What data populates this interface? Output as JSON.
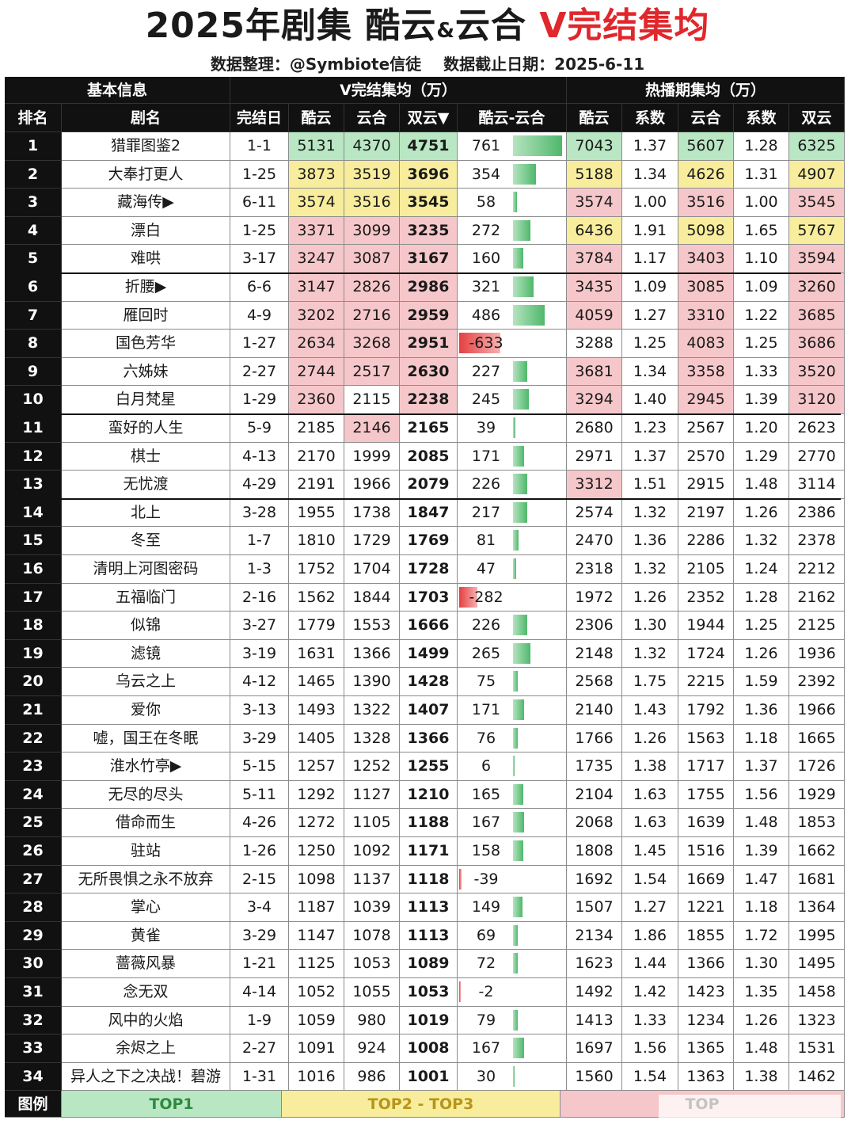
{
  "title": {
    "year": "2025年剧集 ",
    "p1": "酷云",
    "amp": "&",
    "p2": "云合 ",
    "hl": "V完结集均"
  },
  "subtitle": {
    "credit": "数据整理：@Symbiote信徒",
    "date": "数据截止日期：2025-6-11"
  },
  "group_headers": {
    "basic": "基本信息",
    "vfinal": "V完结集均（万）",
    "hot": "热播期集均（万）"
  },
  "columns": [
    "排名",
    "剧名",
    "完结日",
    "酷云",
    "云合",
    "双云▼",
    "酷云-云合",
    "酷云",
    "系数",
    "云合",
    "系数",
    "双云"
  ],
  "rows": [
    {
      "rank": "1",
      "name": "猎罪图鉴2",
      "date": "1-1",
      "ku": "5131",
      "yun": "4370",
      "dual": "4751",
      "diff": 761,
      "hku": "7043",
      "hk1": "1.37",
      "hyun": "5607",
      "hk2": "1.28",
      "hdual": "6325",
      "hl": [
        "g1",
        "g1",
        "g1",
        "",
        "g1",
        "",
        "g1",
        "",
        "g1"
      ]
    },
    {
      "rank": "2",
      "name": "大奉打更人",
      "date": "1-25",
      "ku": "3873",
      "yun": "3519",
      "dual": "3696",
      "diff": 354,
      "hku": "5188",
      "hk1": "1.34",
      "hyun": "4626",
      "hk2": "1.31",
      "hdual": "4907",
      "hl": [
        "g2",
        "g2",
        "g2",
        "",
        "g2",
        "",
        "g2",
        "",
        "g2"
      ]
    },
    {
      "rank": "3",
      "name": "藏海传▶",
      "date": "6-11",
      "ku": "3574",
      "yun": "3516",
      "dual": "3545",
      "diff": 58,
      "hku": "3574",
      "hk1": "1.00",
      "hyun": "3516",
      "hk2": "1.00",
      "hdual": "3545",
      "hl": [
        "g2",
        "g2",
        "g2",
        "",
        "g3",
        "",
        "g3",
        "",
        "g3"
      ]
    },
    {
      "rank": "4",
      "name": "漂白",
      "date": "1-25",
      "ku": "3371",
      "yun": "3099",
      "dual": "3235",
      "diff": 272,
      "hku": "6436",
      "hk1": "1.91",
      "hyun": "5098",
      "hk2": "1.65",
      "hdual": "5767",
      "hl": [
        "g3",
        "g3",
        "g3",
        "",
        "g2",
        "",
        "g2",
        "",
        "g2"
      ]
    },
    {
      "rank": "5",
      "name": "难哄",
      "date": "3-17",
      "ku": "3247",
      "yun": "3087",
      "dual": "3167",
      "diff": 160,
      "hku": "3784",
      "hk1": "1.17",
      "hyun": "3403",
      "hk2": "1.10",
      "hdual": "3594",
      "hl": [
        "g3",
        "g3",
        "g3",
        "",
        "g3",
        "",
        "g3",
        "",
        "g3"
      ]
    },
    {
      "rank": "6",
      "name": "折腰▶",
      "date": "6-6",
      "ku": "3147",
      "yun": "2826",
      "dual": "2986",
      "diff": 321,
      "hku": "3435",
      "hk1": "1.09",
      "hyun": "3085",
      "hk2": "1.09",
      "hdual": "3260",
      "hl": [
        "g3",
        "g3",
        "g3",
        "",
        "g3",
        "",
        "g3",
        "",
        "g3"
      ]
    },
    {
      "rank": "7",
      "name": "雁回时",
      "date": "4-9",
      "ku": "3202",
      "yun": "2716",
      "dual": "2959",
      "diff": 486,
      "hku": "4059",
      "hk1": "1.27",
      "hyun": "3310",
      "hk2": "1.22",
      "hdual": "3685",
      "hl": [
        "g3",
        "g3",
        "g3",
        "",
        "g3",
        "",
        "g3",
        "",
        "g3"
      ]
    },
    {
      "rank": "8",
      "name": "国色芳华",
      "date": "1-27",
      "ku": "2634",
      "yun": "3268",
      "dual": "2951",
      "diff": -633,
      "hku": "3288",
      "hk1": "1.25",
      "hyun": "4083",
      "hk2": "1.25",
      "hdual": "3686",
      "hl": [
        "g3",
        "g3",
        "g3",
        "",
        "",
        "",
        "g3",
        "",
        "g3"
      ]
    },
    {
      "rank": "9",
      "name": "六姊妹",
      "date": "2-27",
      "ku": "2744",
      "yun": "2517",
      "dual": "2630",
      "diff": 227,
      "hku": "3681",
      "hk1": "1.34",
      "hyun": "3358",
      "hk2": "1.33",
      "hdual": "3520",
      "hl": [
        "g3",
        "g3",
        "g3",
        "",
        "g3",
        "",
        "g3",
        "",
        "g3"
      ]
    },
    {
      "rank": "10",
      "name": "白月梵星",
      "date": "1-29",
      "ku": "2360",
      "yun": "2115",
      "dual": "2238",
      "diff": 245,
      "hku": "3294",
      "hk1": "1.40",
      "hyun": "2945",
      "hk2": "1.39",
      "hdual": "3120",
      "hl": [
        "g3",
        "",
        "g3",
        "",
        "g3",
        "",
        "g3",
        "",
        "g3"
      ]
    },
    {
      "rank": "11",
      "name": "蛮好的人生",
      "date": "5-9",
      "ku": "2185",
      "yun": "2146",
      "dual": "2165",
      "diff": 39,
      "hku": "2680",
      "hk1": "1.23",
      "hyun": "2567",
      "hk2": "1.20",
      "hdual": "2623",
      "hl": [
        "",
        "g3",
        "",
        "",
        "",
        "",
        "",
        "",
        ""
      ]
    },
    {
      "rank": "12",
      "name": "棋士",
      "date": "4-13",
      "ku": "2170",
      "yun": "1999",
      "dual": "2085",
      "diff": 171,
      "hku": "2971",
      "hk1": "1.37",
      "hyun": "2570",
      "hk2": "1.29",
      "hdual": "2770",
      "hl": [
        "",
        "",
        "",
        "",
        "",
        "",
        "",
        "",
        ""
      ]
    },
    {
      "rank": "13",
      "name": "无忧渡",
      "date": "4-29",
      "ku": "2191",
      "yun": "1966",
      "dual": "2079",
      "diff": 226,
      "hku": "3312",
      "hk1": "1.51",
      "hyun": "2915",
      "hk2": "1.48",
      "hdual": "3114",
      "hl": [
        "",
        "",
        "",
        "",
        "g3",
        "",
        "",
        "",
        ""
      ]
    },
    {
      "rank": "14",
      "name": "北上",
      "date": "3-28",
      "ku": "1955",
      "yun": "1738",
      "dual": "1847",
      "diff": 217,
      "hku": "2574",
      "hk1": "1.32",
      "hyun": "2197",
      "hk2": "1.26",
      "hdual": "2386",
      "hl": [
        "",
        "",
        "",
        "",
        "",
        "",
        "",
        "",
        ""
      ]
    },
    {
      "rank": "15",
      "name": "冬至",
      "date": "1-7",
      "ku": "1810",
      "yun": "1729",
      "dual": "1769",
      "diff": 81,
      "hku": "2470",
      "hk1": "1.36",
      "hyun": "2286",
      "hk2": "1.32",
      "hdual": "2378",
      "hl": [
        "",
        "",
        "",
        "",
        "",
        "",
        "",
        "",
        ""
      ]
    },
    {
      "rank": "16",
      "name": "清明上河图密码",
      "date": "1-3",
      "ku": "1752",
      "yun": "1704",
      "dual": "1728",
      "diff": 47,
      "hku": "2318",
      "hk1": "1.32",
      "hyun": "2105",
      "hk2": "1.24",
      "hdual": "2212",
      "hl": [
        "",
        "",
        "",
        "",
        "",
        "",
        "",
        "",
        ""
      ]
    },
    {
      "rank": "17",
      "name": "五福临门",
      "date": "2-16",
      "ku": "1562",
      "yun": "1844",
      "dual": "1703",
      "diff": -282,
      "hku": "1972",
      "hk1": "1.26",
      "hyun": "2352",
      "hk2": "1.28",
      "hdual": "2162",
      "hl": [
        "",
        "",
        "",
        "",
        "",
        "",
        "",
        "",
        ""
      ]
    },
    {
      "rank": "18",
      "name": "似锦",
      "date": "3-27",
      "ku": "1779",
      "yun": "1553",
      "dual": "1666",
      "diff": 226,
      "hku": "2306",
      "hk1": "1.30",
      "hyun": "1944",
      "hk2": "1.25",
      "hdual": "2125",
      "hl": [
        "",
        "",
        "",
        "",
        "",
        "",
        "",
        "",
        ""
      ]
    },
    {
      "rank": "19",
      "name": "滤镜",
      "date": "3-19",
      "ku": "1631",
      "yun": "1366",
      "dual": "1499",
      "diff": 265,
      "hku": "2148",
      "hk1": "1.32",
      "hyun": "1724",
      "hk2": "1.26",
      "hdual": "1936",
      "hl": [
        "",
        "",
        "",
        "",
        "",
        "",
        "",
        "",
        ""
      ]
    },
    {
      "rank": "20",
      "name": "乌云之上",
      "date": "4-12",
      "ku": "1465",
      "yun": "1390",
      "dual": "1428",
      "diff": 75,
      "hku": "2568",
      "hk1": "1.75",
      "hyun": "2215",
      "hk2": "1.59",
      "hdual": "2392",
      "hl": [
        "",
        "",
        "",
        "",
        "",
        "",
        "",
        "",
        ""
      ]
    },
    {
      "rank": "21",
      "name": "爱你",
      "date": "3-13",
      "ku": "1493",
      "yun": "1322",
      "dual": "1407",
      "diff": 171,
      "hku": "2140",
      "hk1": "1.43",
      "hyun": "1792",
      "hk2": "1.36",
      "hdual": "1966",
      "hl": [
        "",
        "",
        "",
        "",
        "",
        "",
        "",
        "",
        ""
      ]
    },
    {
      "rank": "22",
      "name": "嘘，国王在冬眠",
      "date": "3-29",
      "ku": "1405",
      "yun": "1328",
      "dual": "1366",
      "diff": 76,
      "hku": "1766",
      "hk1": "1.26",
      "hyun": "1563",
      "hk2": "1.18",
      "hdual": "1665",
      "hl": [
        "",
        "",
        "",
        "",
        "",
        "",
        "",
        "",
        ""
      ]
    },
    {
      "rank": "23",
      "name": "淮水竹亭▶",
      "date": "5-15",
      "ku": "1257",
      "yun": "1252",
      "dual": "1255",
      "diff": 6,
      "hku": "1735",
      "hk1": "1.38",
      "hyun": "1717",
      "hk2": "1.37",
      "hdual": "1726",
      "hl": [
        "",
        "",
        "",
        "",
        "",
        "",
        "",
        "",
        ""
      ]
    },
    {
      "rank": "24",
      "name": "无尽的尽头",
      "date": "5-11",
      "ku": "1292",
      "yun": "1127",
      "dual": "1210",
      "diff": 165,
      "hku": "2104",
      "hk1": "1.63",
      "hyun": "1755",
      "hk2": "1.56",
      "hdual": "1929",
      "hl": [
        "",
        "",
        "",
        "",
        "",
        "",
        "",
        "",
        ""
      ]
    },
    {
      "rank": "25",
      "name": "借命而生",
      "date": "4-26",
      "ku": "1272",
      "yun": "1105",
      "dual": "1188",
      "diff": 167,
      "hku": "2068",
      "hk1": "1.63",
      "hyun": "1639",
      "hk2": "1.48",
      "hdual": "1853",
      "hl": [
        "",
        "",
        "",
        "",
        "",
        "",
        "",
        "",
        ""
      ]
    },
    {
      "rank": "26",
      "name": "驻站",
      "date": "1-26",
      "ku": "1250",
      "yun": "1092",
      "dual": "1171",
      "diff": 158,
      "hku": "1808",
      "hk1": "1.45",
      "hyun": "1516",
      "hk2": "1.39",
      "hdual": "1662",
      "hl": [
        "",
        "",
        "",
        "",
        "",
        "",
        "",
        "",
        ""
      ]
    },
    {
      "rank": "27",
      "name": "无所畏惧之永不放弃",
      "date": "2-15",
      "ku": "1098",
      "yun": "1137",
      "dual": "1118",
      "diff": -39,
      "hku": "1692",
      "hk1": "1.54",
      "hyun": "1669",
      "hk2": "1.47",
      "hdual": "1681",
      "hl": [
        "",
        "",
        "",
        "",
        "",
        "",
        "",
        "",
        ""
      ]
    },
    {
      "rank": "28",
      "name": "掌心",
      "date": "3-4",
      "ku": "1187",
      "yun": "1039",
      "dual": "1113",
      "diff": 149,
      "hku": "1507",
      "hk1": "1.27",
      "hyun": "1221",
      "hk2": "1.18",
      "hdual": "1364",
      "hl": [
        "",
        "",
        "",
        "",
        "",
        "",
        "",
        "",
        ""
      ]
    },
    {
      "rank": "29",
      "name": "黄雀",
      "date": "3-29",
      "ku": "1147",
      "yun": "1078",
      "dual": "1113",
      "diff": 69,
      "hku": "2134",
      "hk1": "1.86",
      "hyun": "1855",
      "hk2": "1.72",
      "hdual": "1995",
      "hl": [
        "",
        "",
        "",
        "",
        "",
        "",
        "",
        "",
        ""
      ]
    },
    {
      "rank": "30",
      "name": "蔷薇风暴",
      "date": "1-21",
      "ku": "1125",
      "yun": "1053",
      "dual": "1089",
      "diff": 72,
      "hku": "1623",
      "hk1": "1.44",
      "hyun": "1366",
      "hk2": "1.30",
      "hdual": "1495",
      "hl": [
        "",
        "",
        "",
        "",
        "",
        "",
        "",
        "",
        ""
      ]
    },
    {
      "rank": "31",
      "name": "念无双",
      "date": "4-14",
      "ku": "1052",
      "yun": "1055",
      "dual": "1053",
      "diff": -2,
      "hku": "1492",
      "hk1": "1.42",
      "hyun": "1423",
      "hk2": "1.35",
      "hdual": "1458",
      "hl": [
        "",
        "",
        "",
        "",
        "",
        "",
        "",
        "",
        ""
      ]
    },
    {
      "rank": "32",
      "name": "风中的火焰",
      "date": "1-9",
      "ku": "1059",
      "yun": "980",
      "dual": "1019",
      "diff": 79,
      "hku": "1413",
      "hk1": "1.33",
      "hyun": "1234",
      "hk2": "1.26",
      "hdual": "1323",
      "hl": [
        "",
        "",
        "",
        "",
        "",
        "",
        "",
        "",
        ""
      ]
    },
    {
      "rank": "33",
      "name": "余烬之上",
      "date": "2-27",
      "ku": "1091",
      "yun": "924",
      "dual": "1008",
      "diff": 167,
      "hku": "1697",
      "hk1": "1.56",
      "hyun": "1365",
      "hk2": "1.48",
      "hdual": "1531",
      "hl": [
        "",
        "",
        "",
        "",
        "",
        "",
        "",
        "",
        ""
      ]
    },
    {
      "rank": "34",
      "name": "异人之下之决战！碧游",
      "date": "1-31",
      "ku": "1016",
      "yun": "986",
      "dual": "1001",
      "diff": 30,
      "hku": "1560",
      "hk1": "1.54",
      "hyun": "1363",
      "hk2": "1.38",
      "hdual": "1462",
      "hl": [
        "",
        "",
        "",
        "",
        "",
        "",
        "",
        "",
        ""
      ]
    }
  ],
  "legend": {
    "label": "图例",
    "top1": "TOP1",
    "top23": "TOP2 - TOP3",
    "top4": "TOP"
  },
  "colors": {
    "green": "#b9e6c3",
    "yellow": "#f7ed9c",
    "pink": "#f6c7ca",
    "bar_pos": "#4fb86b",
    "bar_neg": "#e54040",
    "title_red": "#e0272c"
  }
}
